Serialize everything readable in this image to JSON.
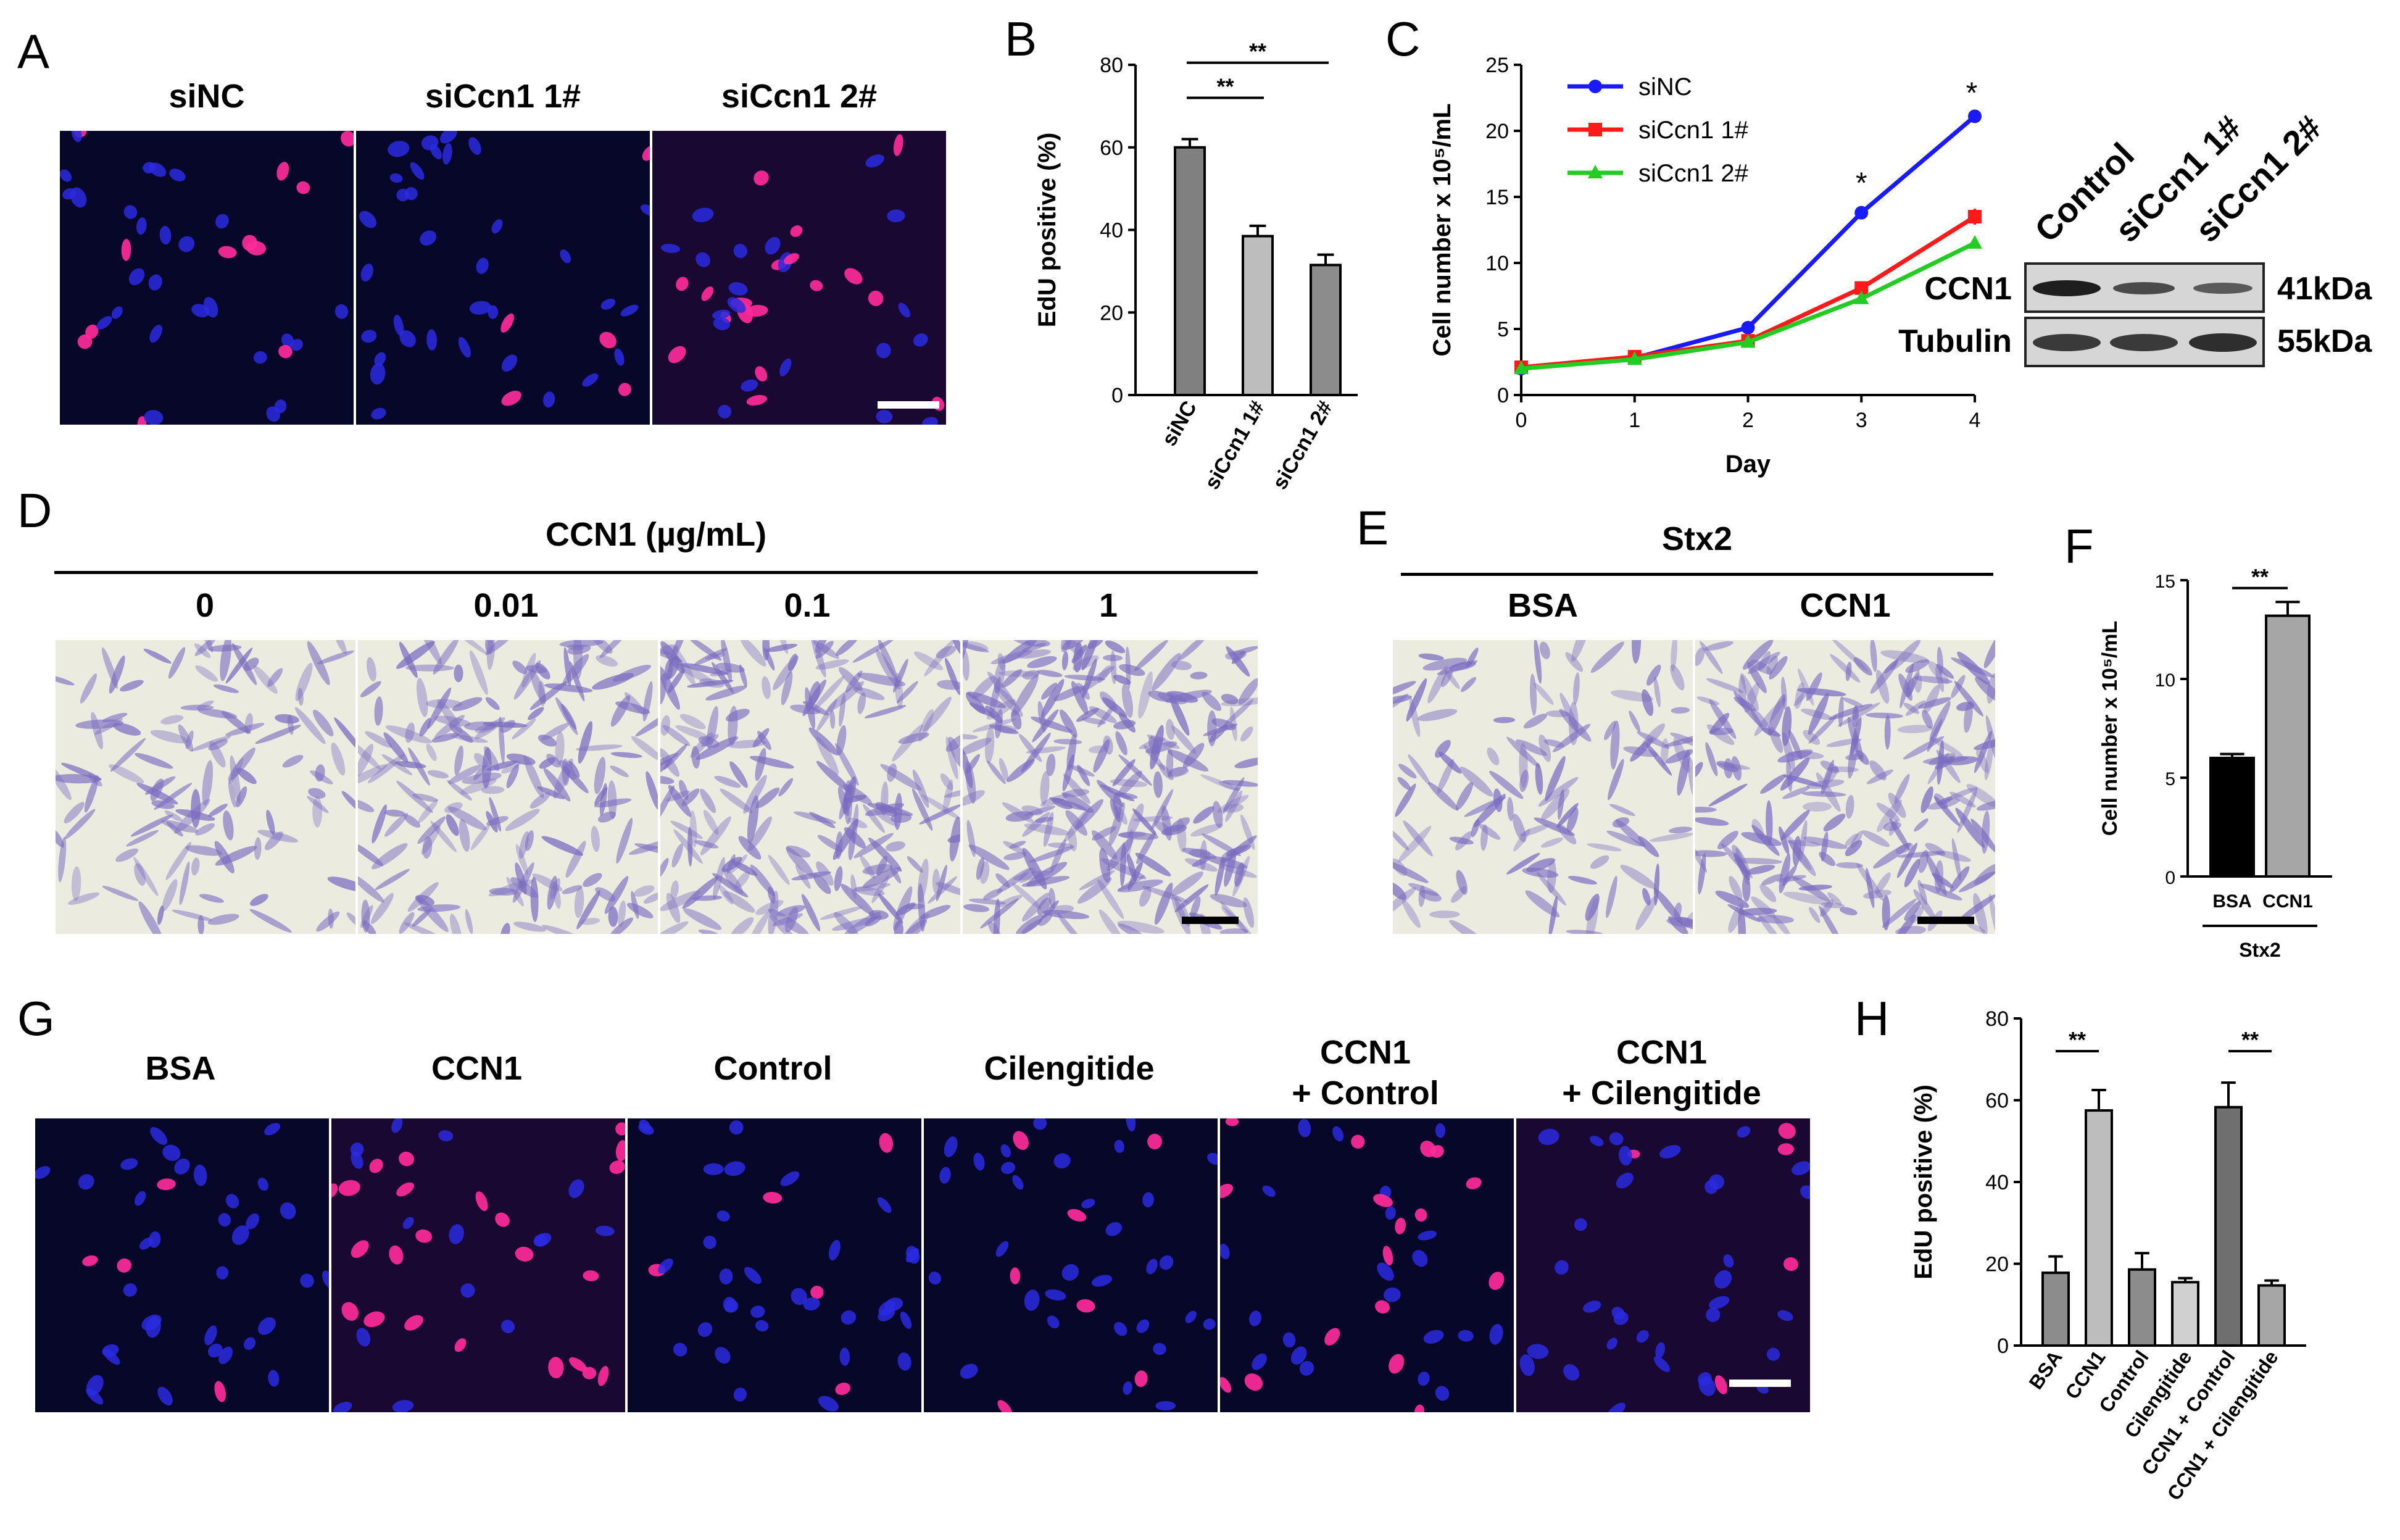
{
  "panels": {
    "A": {
      "letter": "A",
      "columns": [
        "siNC",
        "siCcn1 1#",
        "siCcn1 2#"
      ]
    },
    "B": {
      "letter": "B",
      "sig": [
        "**",
        "**"
      ]
    },
    "C": {
      "letter": "C",
      "sig": [
        "*",
        "*"
      ]
    },
    "blot": {
      "columns": [
        "Control",
        "siCcn1 1#",
        "siCcn1 2#"
      ],
      "rows": [
        "CCN1",
        "Tubulin"
      ],
      "sizes": [
        "41kDa",
        "55kDa"
      ]
    },
    "D": {
      "letter": "D",
      "title": "CCN1 (µg/mL)",
      "columns": [
        "0",
        "0.01",
        "0.1",
        "1"
      ]
    },
    "E": {
      "letter": "E",
      "title": "Stx2",
      "columns": [
        "BSA",
        "CCN1"
      ]
    },
    "F": {
      "letter": "F",
      "sig": "**",
      "group": "Stx2"
    },
    "G": {
      "letter": "G",
      "columns": [
        "BSA",
        "CCN1",
        "Control",
        "Cilengitide"
      ],
      "combo": [
        [
          "CCN1",
          "+ Control"
        ],
        [
          "CCN1",
          "+ Cilengitide"
        ]
      ]
    },
    "H": {
      "letter": "H",
      "sig": [
        "**",
        "**"
      ]
    }
  },
  "colors": {
    "fluor_bg": "#07072a",
    "nucleus_blue": "#2a2ae0",
    "edu_pink": "#ff2a9a",
    "stain_bg": "#ecebe0",
    "stain_cell": "#7a6cc0",
    "line_siNC": "#1a1aff",
    "line_si1": "#ff1a1a",
    "line_si2": "#22cc22"
  },
  "chart_data": [
    {
      "id": "B",
      "type": "bar",
      "categories": [
        "siNC",
        "siCcn1 1#",
        "siCcn1 2#"
      ],
      "values": [
        60,
        38.5,
        31.5
      ],
      "errors": [
        2,
        2.5,
        2.5
      ],
      "bar_colors": [
        "#808080",
        "#bdbdbd",
        "#8c8c8c"
      ],
      "ylabel": "EdU positive (%)",
      "ylim": [
        0,
        80
      ],
      "yticks": [
        0,
        20,
        40,
        60,
        80
      ]
    },
    {
      "id": "C",
      "type": "line",
      "x": [
        0,
        1,
        2,
        3,
        4
      ],
      "xticks": [
        "0",
        "1",
        "2",
        "3",
        "4"
      ],
      "series": [
        {
          "name": "siNC",
          "values": [
            2,
            2.8,
            5.1,
            13.8,
            21.1
          ],
          "errors": [
            0.2,
            0.2,
            0.2,
            0.3,
            0.5
          ]
        },
        {
          "name": "siCcn1 1#",
          "values": [
            2.1,
            2.9,
            4.1,
            8.1,
            13.5
          ],
          "errors": [
            0.2,
            0.2,
            0.2,
            0.3,
            0.6
          ]
        },
        {
          "name": "siCcn1 2#",
          "values": [
            2,
            2.7,
            4.0,
            7.3,
            11.5
          ],
          "errors": [
            0.2,
            0.2,
            0.2,
            0.3,
            0.4
          ]
        }
      ],
      "xlabel": "Day",
      "ylabel": "Cell number x 10⁵/mL",
      "ylim": [
        0,
        25
      ],
      "yticks": [
        0,
        5,
        10,
        15,
        20,
        25
      ]
    },
    {
      "id": "F",
      "type": "bar",
      "categories": [
        "BSA",
        "CCN1"
      ],
      "values": [
        6,
        13.2
      ],
      "errors": [
        0.2,
        0.7
      ],
      "bar_colors": [
        "#000000",
        "#a6a6a6"
      ],
      "ylabel": "Cell number x 10⁵/mL",
      "ylim": [
        0,
        15
      ],
      "yticks": [
        0,
        5,
        10,
        15
      ]
    },
    {
      "id": "H",
      "type": "bar",
      "categories": [
        "BSA",
        "CCN1",
        "Control",
        "Cilengitide",
        "CCN1 + Control",
        "CCN1 + Cilengitide"
      ],
      "values": [
        17.8,
        57.5,
        18.6,
        15.5,
        58.3,
        14.7
      ],
      "errors": [
        4,
        5,
        4,
        1,
        6,
        1.2
      ],
      "bar_colors": [
        "#8c8c8c",
        "#bdbdbd",
        "#8c8c8c",
        "#d0d0d0",
        "#6f6f6f",
        "#a6a6a6"
      ],
      "ylabel": "EdU positive (%)",
      "ylim": [
        0,
        80
      ],
      "yticks": [
        0,
        20,
        40,
        60,
        80
      ]
    }
  ]
}
